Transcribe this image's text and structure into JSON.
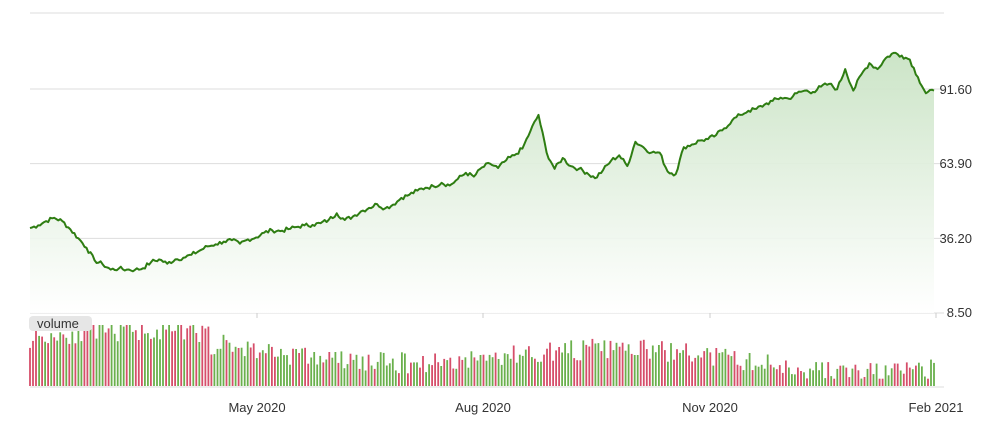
{
  "chart_data": {
    "type": "line",
    "title": "",
    "xlabel": "",
    "ylabel": "",
    "y_ticks": [
      "8.50",
      "36.20",
      "63.90",
      "91.60"
    ],
    "ylim": [
      8.5,
      91.6
    ],
    "x_ticks": [
      "May 2020",
      "Aug 2020",
      "Nov 2020",
      "Feb 2021"
    ],
    "grid": true,
    "colors": {
      "line": "#2e7d12",
      "area_top": "#c9e3c4",
      "vol_up": "#6ab04c",
      "vol_down": "#d64e6a",
      "grid": "#dddddd"
    },
    "volume_label": "volume",
    "series": [
      {
        "values": [
          40.0,
          41.0,
          42.6,
          43.8,
          42.6,
          39.5,
          36.2,
          32.7,
          28.0,
          26.6,
          24.6,
          25.0,
          24.6,
          24.5,
          25.1,
          27.4,
          28.4,
          26.8,
          28.4,
          29.0,
          30.1,
          31.6,
          33.2,
          34.0,
          35.0,
          35.5,
          34.2,
          35.8,
          36.5,
          38.3,
          39.2,
          38.9,
          39.6,
          40.4,
          41.0,
          41.2,
          41.8,
          43.0,
          45.5,
          43.0,
          44.3,
          46.2,
          47.5,
          48.9,
          47.3,
          48.7,
          51.2,
          52.4,
          53.9,
          55.0,
          55.5,
          56.8,
          55.8,
          58.2,
          60.5,
          59.1,
          62.5,
          63.9,
          62.3,
          65.2,
          67.0,
          69.5,
          76.0,
          82.0,
          68.0,
          62.0,
          66.0,
          63.0,
          62.0,
          60.5,
          58.5,
          61.5,
          65.0,
          67.0,
          63.0,
          72.0,
          70.0,
          68.0,
          68.0,
          61.0,
          60.0,
          70.0,
          71.0,
          72.5,
          73.0,
          74.5,
          77.0,
          80.0,
          82.0,
          83.5,
          84.2,
          85.8,
          87.2,
          88.4,
          88.0,
          90.0,
          91.0,
          90.5,
          92.5,
          93.5,
          91.5,
          99.0,
          91.0,
          97.0,
          101.2,
          99.0,
          103.0,
          105.0,
          104.0,
          102.5,
          96.0,
          90.0,
          91.0
        ]
      }
    ]
  }
}
